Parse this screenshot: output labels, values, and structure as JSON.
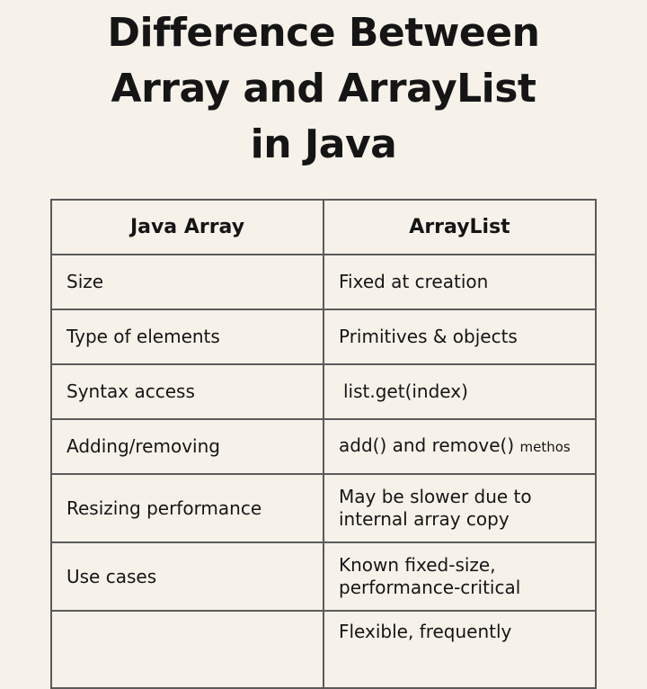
{
  "title": {
    "line1": "Difference Between",
    "line2": "Array and ArrayList",
    "line3": "in Java"
  },
  "table": {
    "headers": [
      "Java Array",
      "ArrayList"
    ],
    "rows": [
      {
        "feature": "Size",
        "arraylist": "Fixed at creation"
      },
      {
        "feature": "Type of elements",
        "arraylist": "Primitives & objects"
      },
      {
        "feature": "Syntax access",
        "arraylist": "list.get(index)"
      },
      {
        "feature": "Adding/removing",
        "arraylist": "add() and remove()",
        "arraylist_suffix": "methos"
      },
      {
        "feature": "Resizing performance",
        "arraylist": "May be slower due to",
        "arraylist_line2": "internal array copy"
      },
      {
        "feature": "Use cases",
        "arraylist": "Known fixed-size,",
        "arraylist_line2": "performance-critical"
      },
      {
        "feature": "",
        "arraylist": "Flexible, frequently"
      }
    ]
  }
}
